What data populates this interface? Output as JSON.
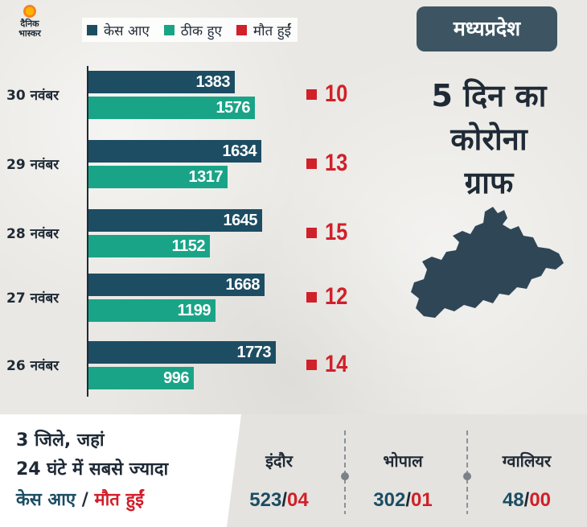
{
  "logo": {
    "line1": "दैनिक",
    "line2": "भास्कर"
  },
  "region": "मध्यप्रदेश",
  "title_lines": [
    "5 दिन का",
    "कोरोना",
    "ग्राफ"
  ],
  "legend": [
    {
      "label": "केस आए",
      "color": "#1c4d63"
    },
    {
      "label": "ठीक हुए",
      "color": "#1aa487"
    },
    {
      "label": "मौत हुईं",
      "color": "#d0202a"
    }
  ],
  "chart_data": {
    "type": "bar",
    "orientation": "horizontal",
    "categories": [
      "30 नवंबर",
      "29 नवंबर",
      "28 नवंबर",
      "27 नवंबर",
      "26 नवंबर"
    ],
    "series": [
      {
        "name": "केस आए",
        "values": [
          1383,
          1634,
          1645,
          1668,
          1773
        ]
      },
      {
        "name": "ठीक हुए",
        "values": [
          1576,
          1317,
          1152,
          1199,
          996
        ]
      },
      {
        "name": "मौत हुईं",
        "values": [
          10,
          13,
          15,
          12,
          14
        ]
      }
    ],
    "death_labels": [
      "10",
      "13",
      "15",
      "12",
      "14"
    ],
    "xlim": [
      0,
      2000
    ]
  },
  "bottom": {
    "heading_line1": "3 जिले, जहां",
    "heading_line2": "24 घंटे में सबसे ज्यादा",
    "heading_cases": "केस आए",
    "heading_slash": " / ",
    "heading_deaths": "मौत हुईं",
    "cities": [
      {
        "name": "इंदौर",
        "cases": "523",
        "deaths": "04"
      },
      {
        "name": "भोपाल",
        "cases": "302",
        "deaths": "01"
      },
      {
        "name": "ग्वालियर",
        "cases": "48",
        "deaths": "00"
      }
    ]
  }
}
